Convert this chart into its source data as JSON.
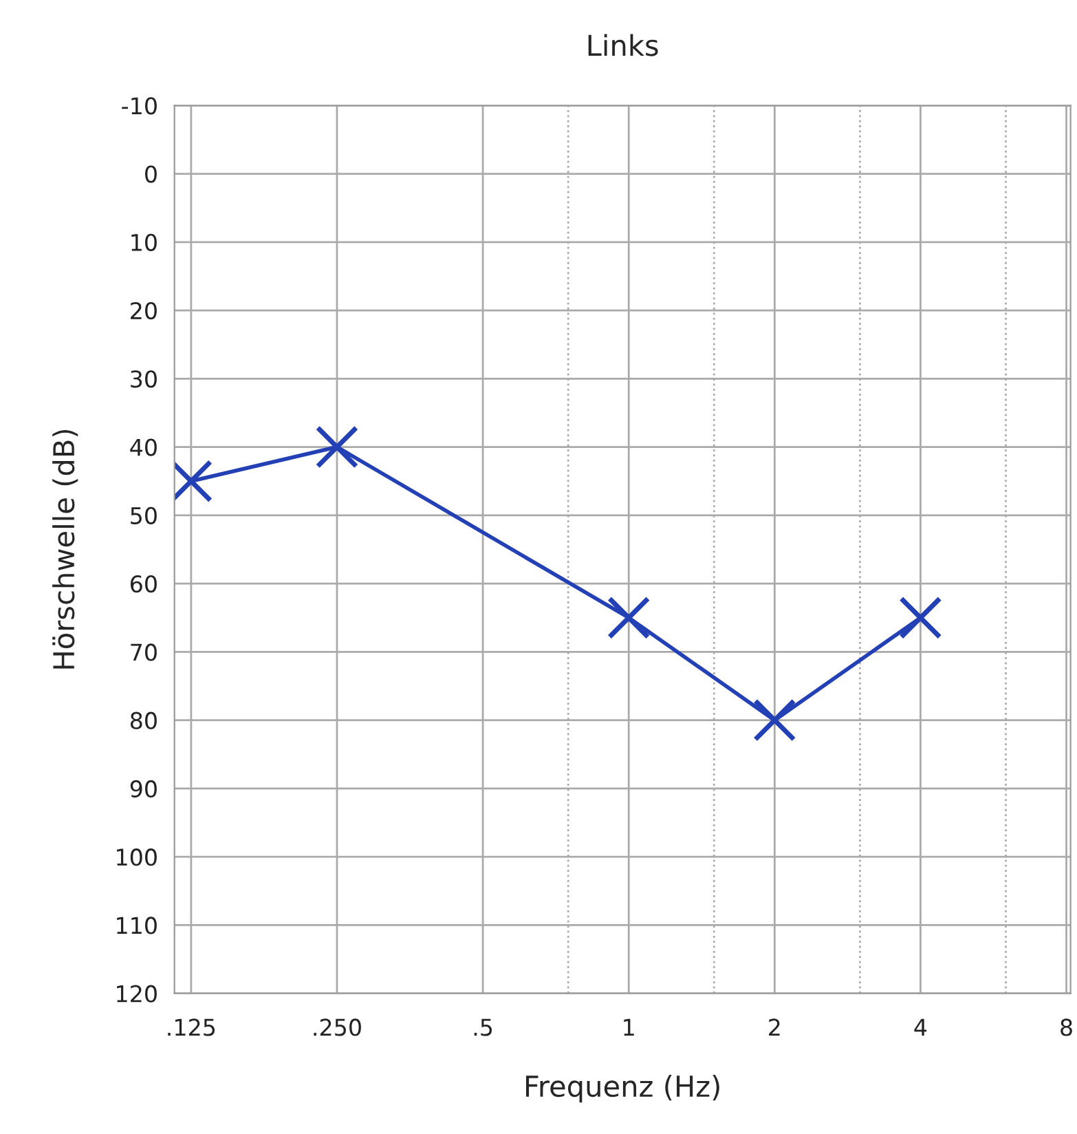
{
  "chart_data": {
    "type": "line",
    "title": "Links",
    "xlabel": "Frequenz (Hz)",
    "ylabel": "Hörschwelle (dB)",
    "x": [
      0.125,
      0.25,
      1,
      2,
      4
    ],
    "series": [
      {
        "color": "#2341b5",
        "values": [
          45,
          40,
          65,
          80,
          65
        ]
      }
    ],
    "xlim": [
      0.1155,
      8.16
    ],
    "xticks": [
      {
        "value": 0.125,
        "label": ".125"
      },
      {
        "value": 0.25,
        "label": ".250"
      },
      {
        "value": 0.5,
        "label": ".5"
      },
      {
        "value": 0.75,
        "label": null
      },
      1,
      {
        "value": 1.5,
        "label": null
      },
      2,
      {
        "value": 3,
        "label": null
      },
      4,
      {
        "value": 6,
        "label": null
      },
      8
    ],
    "ylim": [
      120,
      -10
    ],
    "yticks": [
      -10,
      0,
      10,
      20,
      30,
      40,
      50,
      60,
      70,
      80,
      90,
      100,
      110,
      120
    ],
    "log": "x",
    "grid": true,
    "marker": "cross",
    "line_style": "solid"
  }
}
